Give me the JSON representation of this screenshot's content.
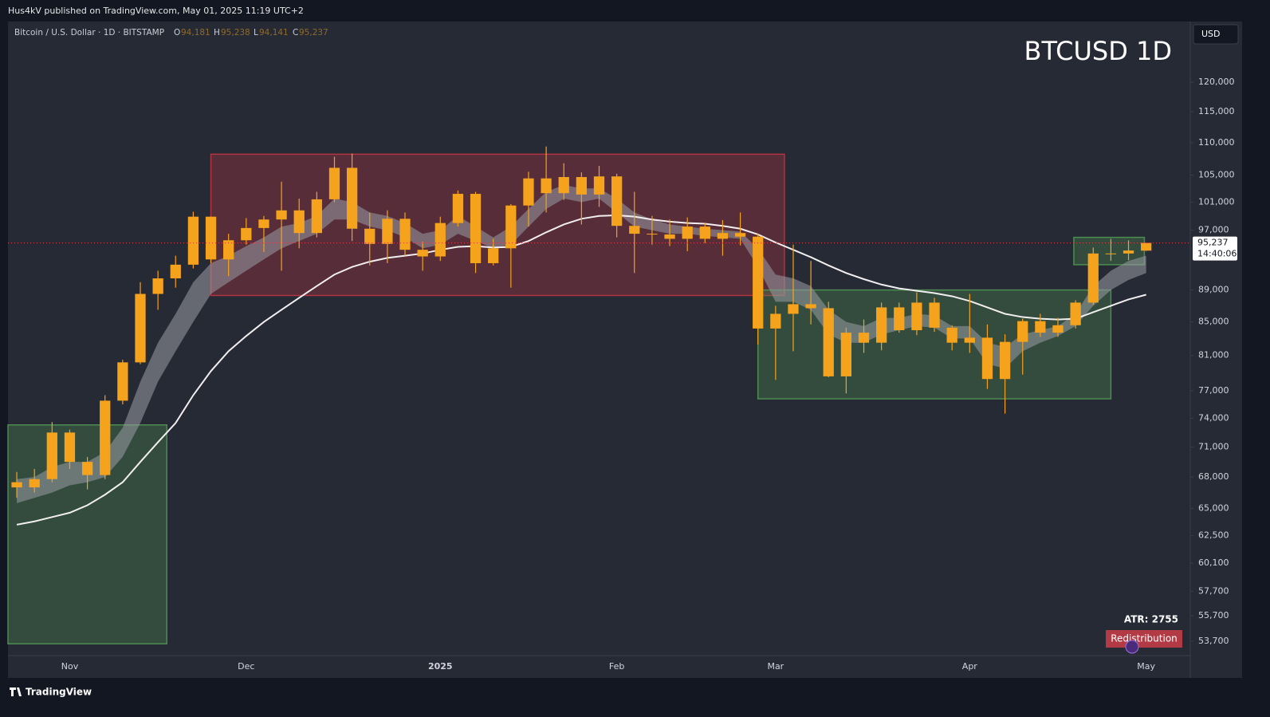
{
  "topbar": {
    "text": "Hus4kV published on TradingView.com, May 01, 2025 11:19 UTC+2"
  },
  "header": {
    "symbol": "Bitcoin / U.S. Dollar · 1D · BITSTAMP",
    "o_label": "O",
    "o": "94,181",
    "h_label": "H",
    "h": "95,238",
    "l_label": "L",
    "l": "94,141",
    "c_label": "C",
    "c": "95,237"
  },
  "watermark": "BTCUSD 1D",
  "currency": "USD",
  "atr": "ATR: 2755",
  "badge": "Redistribution",
  "footer": "TradingView",
  "price_tag": {
    "price": "95,237",
    "countdown": "14:40:06"
  },
  "chart_data": {
    "type": "candlestick",
    "categories": [
      null,
      null,
      null,
      "Nov",
      null,
      null,
      null,
      null,
      null,
      null,
      null,
      null,
      null,
      "Dec",
      null,
      null,
      null,
      null,
      null,
      null,
      null,
      null,
      null,
      null,
      "2025",
      null,
      null,
      null,
      null,
      null,
      null,
      null,
      null,
      null,
      "Feb",
      null,
      null,
      null,
      null,
      null,
      null,
      null,
      null,
      "Mar",
      null,
      null,
      null,
      null,
      null,
      null,
      null,
      null,
      null,
      null,
      "Apr",
      null,
      null,
      null,
      null,
      null,
      null,
      null,
      null,
      null,
      "May"
    ],
    "open": [
      67500,
      67000,
      67800,
      72500,
      69500,
      68200,
      75900,
      80200,
      88500,
      90500,
      92300,
      98900,
      93000,
      95600,
      97300,
      98500,
      99800,
      96600,
      101400,
      106100,
      97200,
      95100,
      98600,
      94300,
      93400,
      98000,
      102200,
      92500,
      94500,
      100500,
      104500,
      102300,
      104700,
      102100,
      104800,
      97600,
      96500,
      96400,
      95800,
      97500,
      95800,
      96600,
      96100,
      84200,
      86000,
      87200,
      86700,
      78600,
      83700,
      82500,
      86800,
      84000,
      87400,
      84300,
      82500,
      83100,
      78300,
      82600,
      85100,
      83700,
      84600,
      87400,
      93800,
      93800,
      94181
    ],
    "high": [
      68500,
      68800,
      73600,
      72800,
      70000,
      76500,
      80500,
      90000,
      91500,
      93500,
      99600,
      98900,
      96500,
      98700,
      99000,
      104000,
      101500,
      102500,
      107800,
      108300,
      99500,
      99800,
      99500,
      95400,
      98900,
      102700,
      102500,
      95800,
      100700,
      105500,
      109400,
      106800,
      105400,
      106400,
      105200,
      102500,
      99000,
      98500,
      98800,
      98000,
      98400,
      99500,
      96500,
      87000,
      95000,
      92800,
      87500,
      84300,
      85300,
      87400,
      87400,
      88700,
      88000,
      84600,
      88500,
      84700,
      83500,
      85400,
      86000,
      85500,
      87700,
      94600,
      95800,
      95600,
      95238
    ],
    "low": [
      66000,
      66500,
      67500,
      68800,
      66800,
      67800,
      75500,
      80000,
      86500,
      89300,
      91800,
      92500,
      90800,
      95000,
      94000,
      91500,
      94500,
      96000,
      101000,
      95500,
      92200,
      92500,
      93500,
      91500,
      92800,
      97500,
      91200,
      92200,
      89300,
      97500,
      99500,
      101300,
      97800,
      100300,
      96000,
      91200,
      95000,
      94800,
      94100,
      95200,
      93500,
      94900,
      82300,
      78200,
      81500,
      84700,
      78500,
      76700,
      81300,
      81600,
      83700,
      83400,
      83800,
      81600,
      81300,
      77200,
      74500,
      78800,
      83200,
      83200,
      84200,
      87100,
      92800,
      92900,
      94141
    ],
    "close": [
      67000,
      67800,
      72500,
      69500,
      68200,
      75900,
      80200,
      88500,
      90500,
      92300,
      98900,
      93000,
      95600,
      97300,
      98500,
      99800,
      96600,
      101400,
      106100,
      97200,
      95100,
      98600,
      94300,
      93400,
      98000,
      102200,
      92500,
      94500,
      100500,
      104500,
      102300,
      104700,
      102100,
      104800,
      97600,
      96500,
      96400,
      95800,
      97500,
      95800,
      96600,
      96100,
      84200,
      86000,
      87200,
      86700,
      78600,
      83700,
      82500,
      86800,
      84000,
      87400,
      84300,
      82500,
      83100,
      78300,
      82600,
      85100,
      83700,
      84600,
      87400,
      93800,
      93800,
      94200,
      95237
    ],
    "candle_color": "#f5a21c",
    "moving_average": {
      "color": "#f2eef0",
      "values": [
        63500,
        63800,
        64200,
        64600,
        65300,
        66300,
        67500,
        69500,
        71500,
        73500,
        76500,
        79200,
        81500,
        83300,
        85000,
        86500,
        88000,
        89500,
        91000,
        92000,
        92700,
        93200,
        93500,
        93800,
        94300,
        94700,
        94800,
        94600,
        94700,
        95500,
        96700,
        97800,
        98600,
        99000,
        99100,
        98900,
        98500,
        98200,
        98000,
        97900,
        97600,
        97200,
        96400,
        95300,
        94300,
        93300,
        92200,
        91200,
        90400,
        89700,
        89200,
        88900,
        88600,
        88200,
        87600,
        86800,
        86000,
        85600,
        85400,
        85300,
        85400,
        86200,
        87000,
        87800,
        88400
      ]
    },
    "ribbon": {
      "color": "#9a9ca4",
      "upper": [
        67800,
        68000,
        69000,
        69500,
        69500,
        70500,
        73000,
        78000,
        82500,
        86000,
        90000,
        92500,
        93500,
        94800,
        96000,
        97500,
        98000,
        99000,
        101500,
        101000,
        99500,
        99000,
        98000,
        96500,
        97000,
        99000,
        97500,
        96000,
        97500,
        100000,
        102500,
        103500,
        103000,
        103000,
        101500,
        99500,
        98500,
        97800,
        97500,
        97200,
        97000,
        96800,
        94500,
        91000,
        90500,
        89500,
        86500,
        85000,
        84500,
        85500,
        85500,
        86000,
        85800,
        84500,
        84500,
        82500,
        82000,
        83500,
        84000,
        84500,
        86000,
        89500,
        91500,
        92800,
        93500
      ],
      "lower": [
        65500,
        66000,
        66500,
        67200,
        67500,
        68000,
        70000,
        73500,
        78000,
        81500,
        85000,
        88500,
        90000,
        91500,
        93000,
        94500,
        95500,
        96500,
        98500,
        98500,
        97500,
        97000,
        96000,
        94500,
        95000,
        96500,
        95500,
        94500,
        95000,
        97500,
        100000,
        101500,
        101000,
        101500,
        99500,
        97500,
        97000,
        96500,
        96500,
        96200,
        96000,
        95800,
        92000,
        87500,
        87500,
        86500,
        83500,
        82500,
        82500,
        83500,
        84000,
        84500,
        84300,
        83000,
        83000,
        80000,
        79500,
        81500,
        82500,
        83300,
        84500,
        87000,
        89000,
        90300,
        91200
      ]
    },
    "zones": [
      {
        "start": 0,
        "end": 9,
        "low": 53500,
        "high": 73300,
        "color": "#4c8c50"
      },
      {
        "start": 11.5,
        "end": 44,
        "low": 88300,
        "high": 108200,
        "color": "#b2343f"
      },
      {
        "start": 42.5,
        "end": 62.5,
        "low": 76100,
        "high": 89000,
        "color": "#4c8c50"
      },
      {
        "start": 60.4,
        "end": 64.4,
        "low": 92300,
        "high": 96000,
        "color": "#4c8c50"
      }
    ],
    "log_scale": true,
    "grid": false,
    "ylim": [
      52600,
      130800
    ],
    "yticks": [
      {
        "value": 53700,
        "label": "53,700"
      },
      {
        "value": 55700,
        "label": "55,700"
      },
      {
        "value": 57700,
        "label": "57,700"
      },
      {
        "value": 60100,
        "label": "60,100"
      },
      {
        "value": 62500,
        "label": "62,500"
      },
      {
        "value": 65000,
        "label": "65,000"
      },
      {
        "value": 68000,
        "label": "68,000"
      },
      {
        "value": 71000,
        "label": "71,000"
      },
      {
        "value": 74000,
        "label": "74,000"
      },
      {
        "value": 77000,
        "label": "77,000"
      },
      {
        "value": 81000,
        "label": "81,000"
      },
      {
        "value": 85000,
        "label": "85,000"
      },
      {
        "value": 89000,
        "label": "89,000"
      },
      {
        "value": 97000,
        "label": "97,000"
      },
      {
        "value": 101000,
        "label": "101,000"
      },
      {
        "value": 105000,
        "label": "105,000"
      },
      {
        "value": 110000,
        "label": "110,000"
      },
      {
        "value": 115000,
        "label": "115,000"
      },
      {
        "value": 120000,
        "label": "120,000"
      }
    ],
    "price_line_color": "#f23645"
  }
}
